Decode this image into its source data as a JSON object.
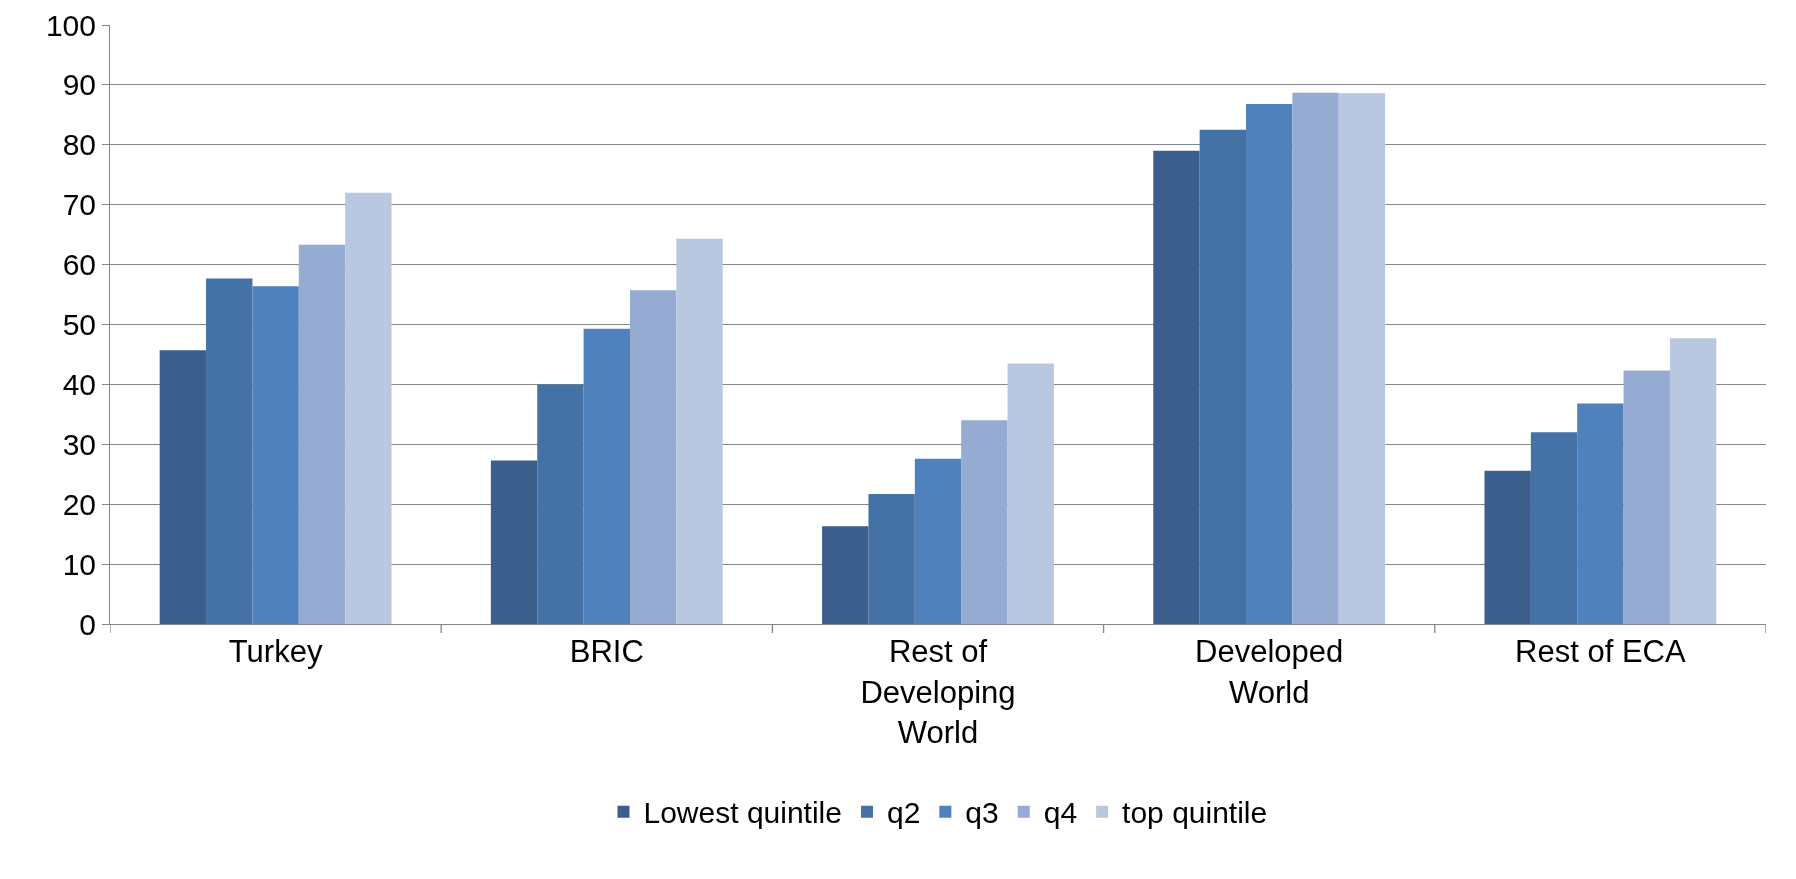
{
  "chart_data": {
    "type": "bar",
    "categories": [
      "Turkey",
      "BRIC",
      "Rest of Developing World",
      "Developed World",
      "Rest of ECA"
    ],
    "series": [
      {
        "name": "Lowest quintile",
        "color": "#3b5e8c",
        "values": [
          45.7,
          27.3,
          16.3,
          79.0,
          25.6
        ]
      },
      {
        "name": "q2",
        "color": "#4471a6",
        "values": [
          57.7,
          40.0,
          21.7,
          82.5,
          32.0
        ]
      },
      {
        "name": "q3",
        "color": "#4f81bd",
        "values": [
          56.4,
          49.3,
          27.6,
          86.8,
          36.8
        ]
      },
      {
        "name": "q4",
        "color": "#95abd1",
        "values": [
          63.3,
          55.7,
          34.0,
          88.7,
          42.3
        ]
      },
      {
        "name": "top quintile",
        "color": "#bac7e1",
        "values": [
          72.0,
          64.3,
          43.5,
          88.6,
          47.7
        ]
      }
    ],
    "ylim": [
      0,
      100
    ],
    "yticks": [
      0,
      10,
      20,
      30,
      40,
      50,
      60,
      70,
      80,
      90,
      100
    ],
    "grid": "y",
    "legend": "bottom"
  }
}
